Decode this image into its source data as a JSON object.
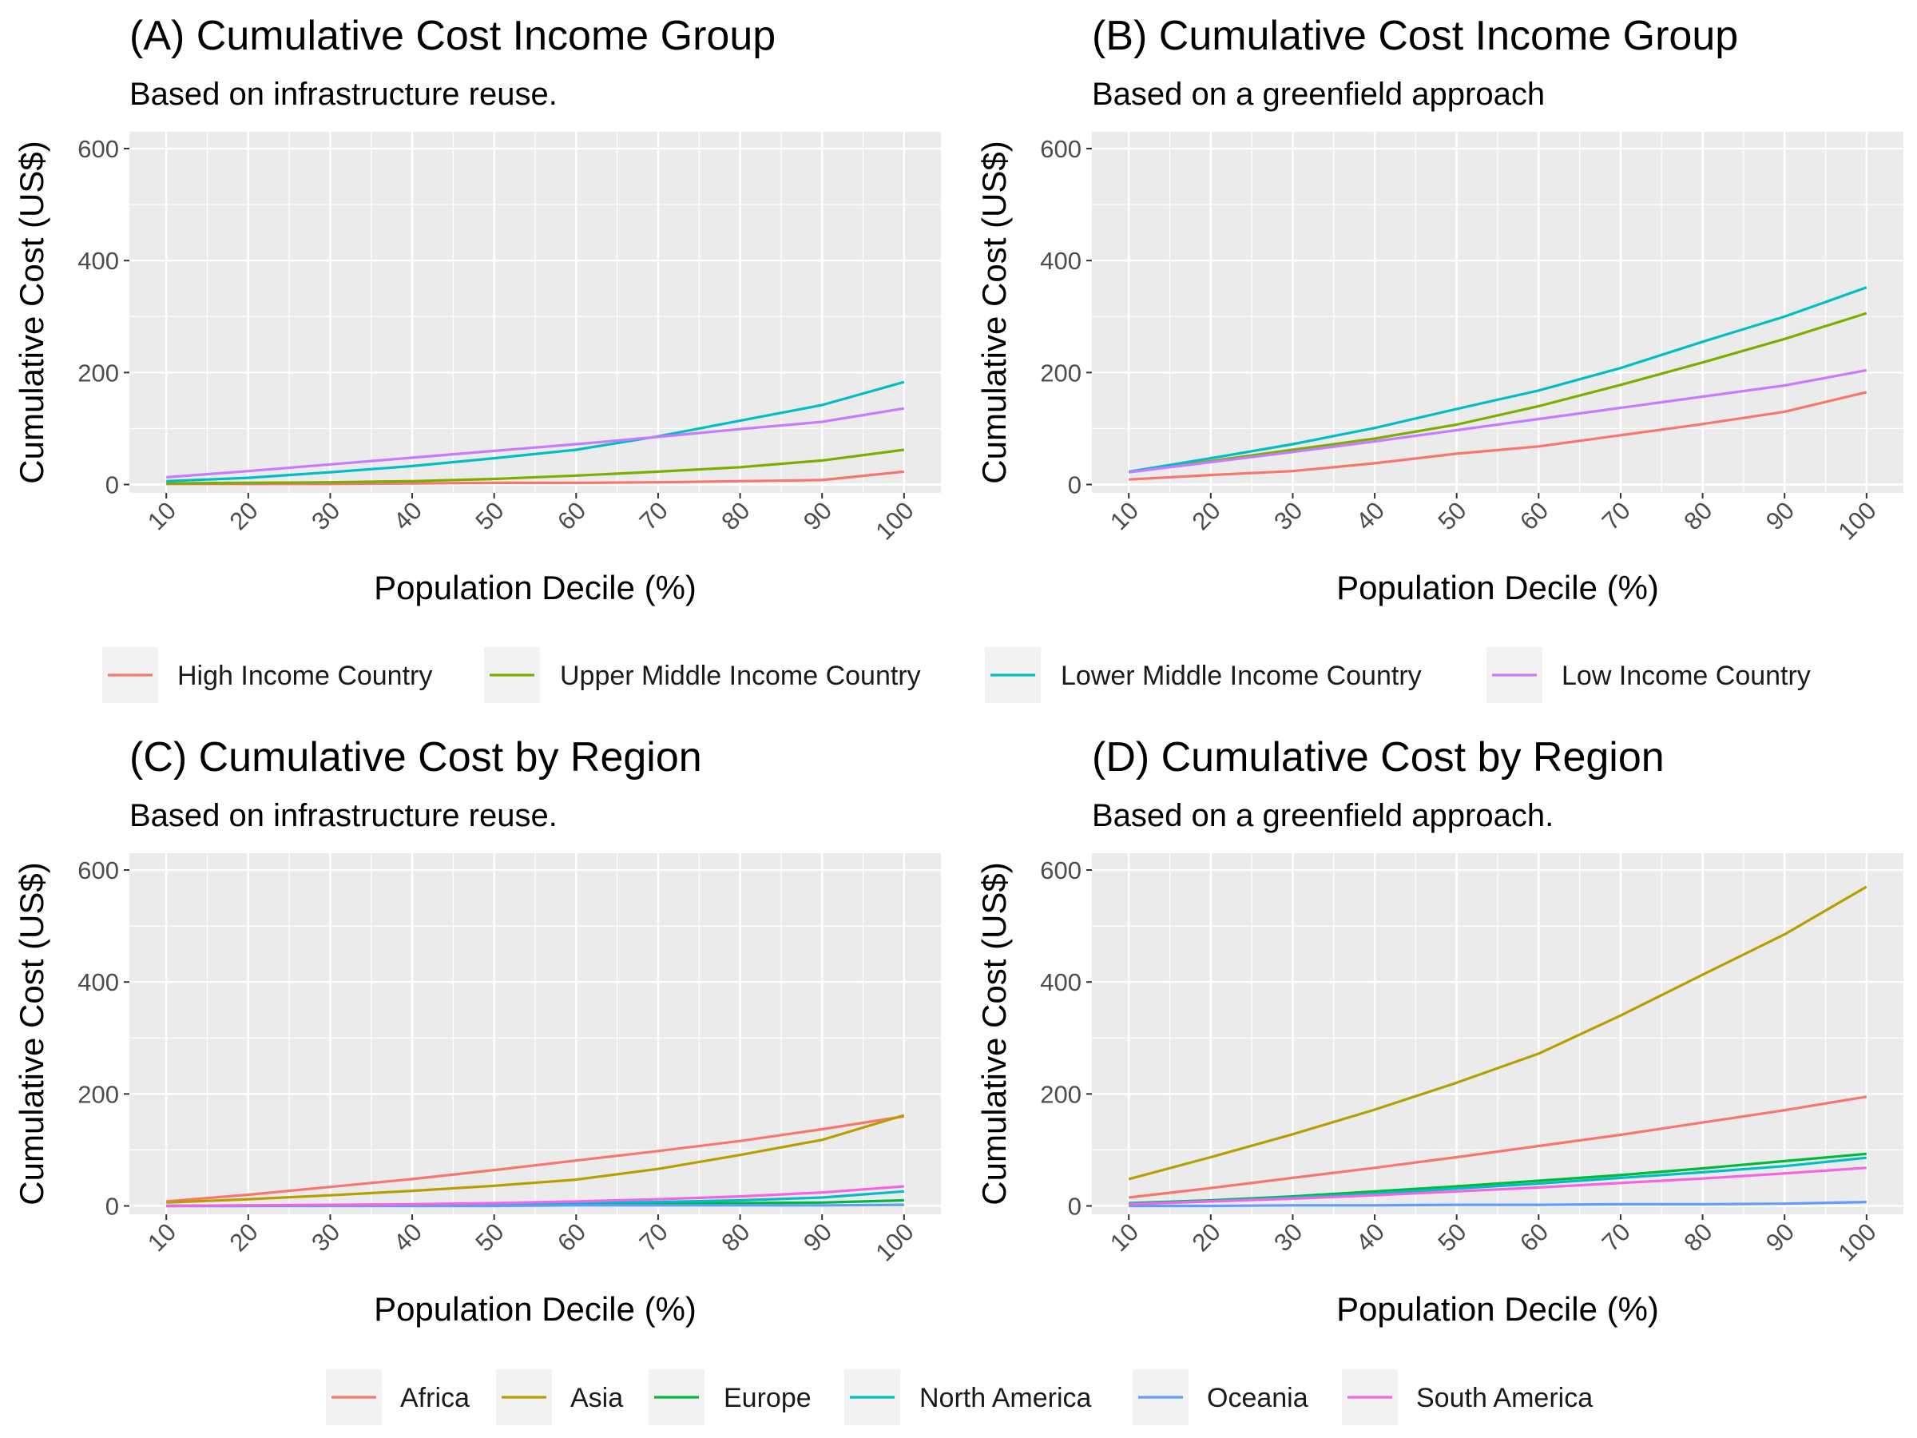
{
  "chart_data": [
    {
      "type": "line",
      "title": "(A) Cumulative Cost Income Group",
      "subtitle": "Based on infrastructure reuse.",
      "xlabel": "Population Decile (%)",
      "ylabel": "Cumulative Cost (US$)",
      "x": [
        10,
        20,
        30,
        40,
        50,
        60,
        70,
        80,
        90,
        100
      ],
      "ylim": [
        -15,
        630
      ],
      "yticks": [
        0,
        200,
        400,
        600
      ],
      "grid": true,
      "series": [
        {
          "name": "High Income Country",
          "values": [
            1,
            1,
            1,
            2,
            3,
            3,
            4,
            6,
            8,
            23
          ]
        },
        {
          "name": "Upper Middle Income Country",
          "values": [
            2,
            3,
            4,
            6,
            10,
            16,
            23,
            31,
            43,
            62
          ]
        },
        {
          "name": "Lower Middle Income Country",
          "values": [
            6,
            12,
            22,
            33,
            47,
            62,
            86,
            114,
            142,
            183
          ]
        },
        {
          "name": "Low Income Country",
          "values": [
            13,
            24,
            36,
            48,
            60,
            72,
            85,
            99,
            112,
            136
          ]
        }
      ]
    },
    {
      "type": "line",
      "title": "(B) Cumulative Cost Income Group",
      "subtitle": "Based on a greenfield approach",
      "xlabel": "Population Decile (%)",
      "ylabel": "Cumulative Cost (US$)",
      "x": [
        10,
        20,
        30,
        40,
        50,
        60,
        70,
        80,
        90,
        100
      ],
      "ylim": [
        -15,
        630
      ],
      "yticks": [
        0,
        200,
        400,
        600
      ],
      "grid": true,
      "series": [
        {
          "name": "High Income Country",
          "values": [
            9,
            17,
            24,
            38,
            55,
            68,
            88,
            108,
            130,
            165
          ]
        },
        {
          "name": "Upper Middle Income Country",
          "values": [
            22,
            42,
            62,
            82,
            107,
            140,
            178,
            218,
            260,
            306
          ]
        },
        {
          "name": "Lower Middle Income Country",
          "values": [
            23,
            47,
            72,
            101,
            135,
            168,
            208,
            255,
            300,
            352
          ]
        },
        {
          "name": "Low Income Country",
          "values": [
            22,
            40,
            58,
            77,
            97,
            117,
            137,
            157,
            177,
            204
          ]
        }
      ]
    },
    {
      "type": "line",
      "title": "(C) Cumulative Cost by Region",
      "subtitle": "Based on infrastructure reuse.",
      "xlabel": "Population Decile (%)",
      "ylabel": "Cumulative Cost (US$)",
      "x": [
        10,
        20,
        30,
        40,
        50,
        60,
        70,
        80,
        90,
        100
      ],
      "ylim": [
        -15,
        630
      ],
      "yticks": [
        0,
        200,
        400,
        600
      ],
      "grid": true,
      "series": [
        {
          "name": "Africa",
          "values": [
            8,
            20,
            34,
            48,
            64,
            81,
            98,
            116,
            137,
            160
          ]
        },
        {
          "name": "Asia",
          "values": [
            6,
            12,
            19,
            27,
            36,
            47,
            66,
            91,
            118,
            162
          ]
        },
        {
          "name": "Europe",
          "values": [
            0,
            0,
            1,
            1,
            2,
            3,
            4,
            5,
            6,
            10
          ]
        },
        {
          "name": "North America",
          "values": [
            0,
            1,
            1,
            2,
            3,
            5,
            7,
            10,
            15,
            26
          ]
        },
        {
          "name": "Oceania",
          "values": [
            0,
            0,
            0,
            0,
            0,
            1,
            1,
            1,
            1,
            2
          ]
        },
        {
          "name": "South America",
          "values": [
            0,
            1,
            2,
            3,
            5,
            8,
            12,
            17,
            24,
            35
          ]
        }
      ]
    },
    {
      "type": "line",
      "title": "(D) Cumulative Cost by Region",
      "subtitle": "Based on a greenfield approach.",
      "xlabel": "Population Decile (%)",
      "ylabel": "Cumulative Cost (US$)",
      "x": [
        10,
        20,
        30,
        40,
        50,
        60,
        70,
        80,
        90,
        100
      ],
      "ylim": [
        -15,
        630
      ],
      "yticks": [
        0,
        200,
        400,
        600
      ],
      "grid": true,
      "series": [
        {
          "name": "Africa",
          "values": [
            15,
            32,
            50,
            68,
            87,
            107,
            127,
            149,
            171,
            195
          ]
        },
        {
          "name": "Asia",
          "values": [
            48,
            87,
            128,
            172,
            220,
            272,
            340,
            413,
            485,
            570
          ]
        },
        {
          "name": "Europe",
          "values": [
            5,
            10,
            17,
            26,
            35,
            45,
            55,
            67,
            80,
            93
          ]
        },
        {
          "name": "North America",
          "values": [
            4,
            9,
            15,
            22,
            31,
            40,
            50,
            60,
            71,
            86
          ]
        },
        {
          "name": "Oceania",
          "values": [
            0,
            0,
            1,
            1,
            2,
            2,
            3,
            3,
            4,
            7
          ]
        },
        {
          "name": "South America",
          "values": [
            3,
            8,
            13,
            19,
            26,
            33,
            41,
            49,
            58,
            68
          ]
        }
      ]
    }
  ],
  "legends": [
    {
      "entries": [
        {
          "label": "High Income Country",
          "color": "#F8766D"
        },
        {
          "label": "Upper Middle Income Country",
          "color": "#7CAE00"
        },
        {
          "label": "Lower Middle Income Country",
          "color": "#00BFC4"
        },
        {
          "label": "Low Income Country",
          "color": "#C77CFF"
        }
      ]
    },
    {
      "entries": [
        {
          "label": "Africa",
          "color": "#F8766D"
        },
        {
          "label": "Asia",
          "color": "#B79F00"
        },
        {
          "label": "Europe",
          "color": "#00BA38"
        },
        {
          "label": "North America",
          "color": "#00BFC4"
        },
        {
          "label": "Oceania",
          "color": "#619CFF"
        },
        {
          "label": "South America",
          "color": "#F564E3"
        }
      ]
    }
  ],
  "colors": {
    "panel_background": "#EBEBEB",
    "grid_major": "#FFFFFF",
    "tick_text": "#4D4D4D"
  }
}
